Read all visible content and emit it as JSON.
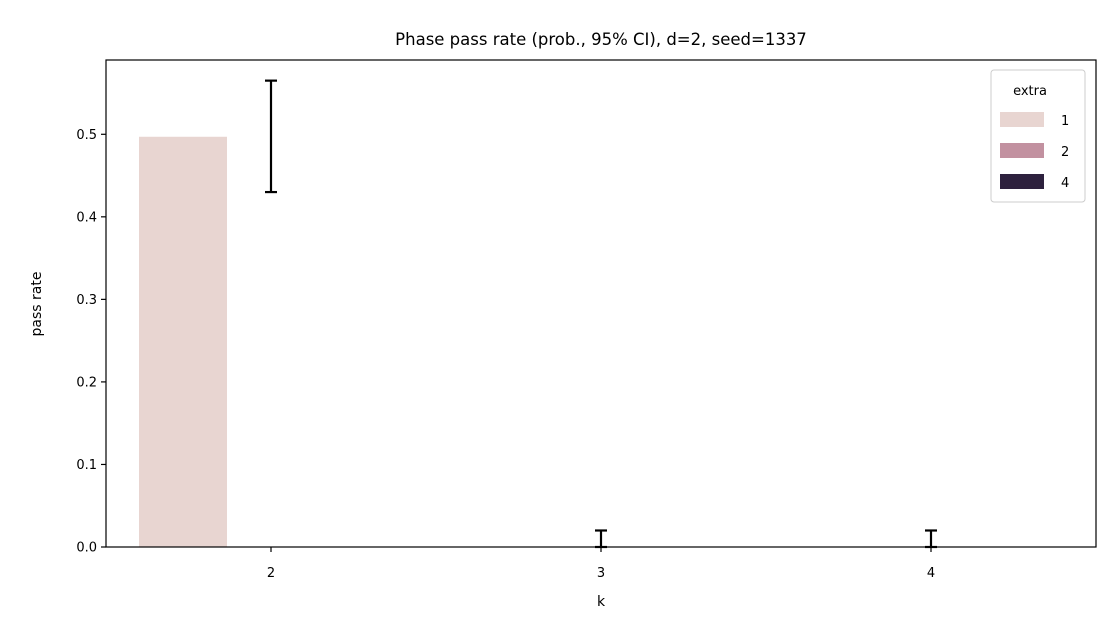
{
  "chart_data": {
    "type": "bar",
    "title": "Phase pass rate (prob., 95% CI), d=2, seed=1337",
    "xlabel": "k",
    "ylabel": "pass rate",
    "categories": [
      "2",
      "3",
      "4"
    ],
    "ylim": [
      0,
      0.59
    ],
    "yticks": [
      0.0,
      0.1,
      0.2,
      0.3,
      0.4,
      0.5
    ],
    "ytick_labels": [
      "0.0",
      "0.1",
      "0.2",
      "0.3",
      "0.4",
      "0.5"
    ],
    "grid": false,
    "legend_position": "top-right",
    "legend_title": "extra",
    "series": [
      {
        "name": "1",
        "color": "#e8d5d1",
        "values": [
          0.497,
          0.0,
          0.0
        ],
        "ci": [
          [
            0.43,
            0.565
          ],
          [
            0.0,
            0.02
          ],
          [
            0.0,
            0.02
          ]
        ]
      },
      {
        "name": "2",
        "color": "#c291a0",
        "values": [
          null,
          null,
          null
        ],
        "ci": [
          null,
          null,
          null
        ]
      },
      {
        "name": "4",
        "color": "#2e213e",
        "values": [
          null,
          null,
          null
        ],
        "ci": [
          null,
          null,
          null
        ]
      }
    ]
  }
}
